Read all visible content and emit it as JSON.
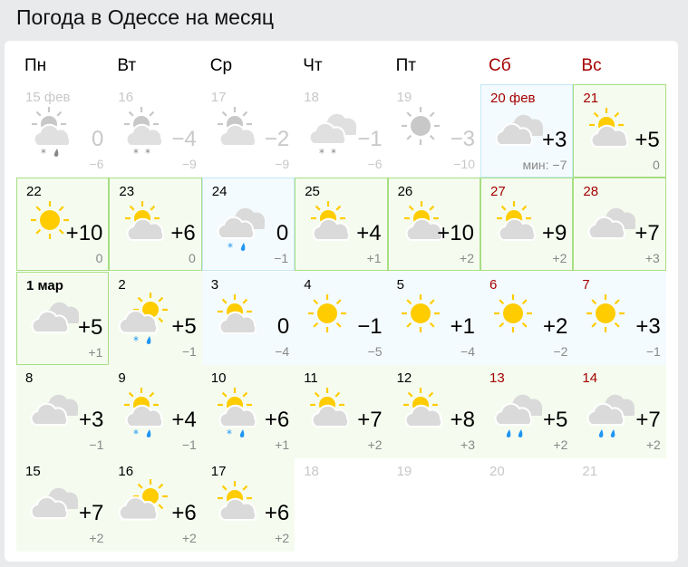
{
  "title": "Погода в Одессе на месяц",
  "weekdays": [
    {
      "label": "Пн",
      "weekend": false
    },
    {
      "label": "Вт",
      "weekend": false
    },
    {
      "label": "Ср",
      "weekend": false
    },
    {
      "label": "Чт",
      "weekend": false
    },
    {
      "label": "Пт",
      "weekend": false
    },
    {
      "label": "Сб",
      "weekend": true
    },
    {
      "label": "Вс",
      "weekend": true
    }
  ],
  "colors": {
    "sun": "#ffcc00",
    "cloud": "#dadada",
    "weekend": "#a50000",
    "precip": "#2196f3",
    "past": "#c8c8c8"
  },
  "days": [
    {
      "date": "15 фев",
      "state": "past",
      "icon": "sun-cloud",
      "precip": [
        "snow",
        "rain"
      ],
      "max": "0",
      "min": "−6"
    },
    {
      "date": "16",
      "state": "past",
      "icon": "sun-cloud",
      "precip": [
        "snow",
        "snow"
      ],
      "max": "−4",
      "min": "−9"
    },
    {
      "date": "17",
      "state": "past",
      "icon": "sun-cloud",
      "precip": [],
      "max": "−2",
      "min": "−9"
    },
    {
      "date": "18",
      "state": "past",
      "icon": "cloudy",
      "precip": [
        "snow",
        "snow"
      ],
      "max": "−1",
      "min": "−6"
    },
    {
      "date": "19",
      "state": "past",
      "icon": "sun",
      "precip": [],
      "max": "−3",
      "min": "−10"
    },
    {
      "date": "20 фев",
      "state": "blue",
      "border": true,
      "weekend": true,
      "icon": "cloudy",
      "precip": [],
      "max": "+3",
      "min": "мин: −7"
    },
    {
      "date": "21",
      "state": "green",
      "border": true,
      "weekend": true,
      "icon": "sun-cloud",
      "precip": [],
      "max": "+5",
      "min": "0"
    },
    {
      "date": "22",
      "state": "green",
      "border": true,
      "icon": "sun",
      "precip": [],
      "max": "+10",
      "min": "0"
    },
    {
      "date": "23",
      "state": "green",
      "border": true,
      "icon": "sun-cloud",
      "precip": [],
      "max": "+6",
      "min": "0"
    },
    {
      "date": "24",
      "state": "blue",
      "border": true,
      "icon": "cloudy",
      "precip": [
        "snow",
        "rain"
      ],
      "max": "0",
      "min": "−1"
    },
    {
      "date": "25",
      "state": "green",
      "border": true,
      "icon": "sun-cloud",
      "precip": [],
      "max": "+4",
      "min": "+1"
    },
    {
      "date": "26",
      "state": "green",
      "border": true,
      "icon": "sun-cloud",
      "precip": [],
      "max": "+10",
      "min": "+2"
    },
    {
      "date": "27",
      "state": "green",
      "border": true,
      "weekend": true,
      "icon": "sun-cloud",
      "precip": [],
      "max": "+9",
      "min": "+2"
    },
    {
      "date": "28",
      "state": "green",
      "border": true,
      "weekend": true,
      "icon": "cloudy",
      "precip": [],
      "max": "+7",
      "min": "+3"
    },
    {
      "date": "1 мар",
      "state": "green",
      "border": true,
      "bold": true,
      "icon": "cloudy",
      "precip": [],
      "max": "+5",
      "min": "+1"
    },
    {
      "date": "2",
      "state": "green",
      "icon": "cloud-sun-side",
      "precip": [
        "snow",
        "rain"
      ],
      "max": "+5",
      "min": "−1"
    },
    {
      "date": "3",
      "state": "blue",
      "icon": "sun-cloud",
      "precip": [],
      "max": "0",
      "min": "−4"
    },
    {
      "date": "4",
      "state": "blue",
      "icon": "sun",
      "precip": [],
      "max": "−1",
      "min": "−5"
    },
    {
      "date": "5",
      "state": "blue",
      "icon": "sun",
      "precip": [],
      "max": "+1",
      "min": "−4"
    },
    {
      "date": "6",
      "state": "blue",
      "weekend": true,
      "icon": "sun",
      "precip": [],
      "max": "+2",
      "min": "−2"
    },
    {
      "date": "7",
      "state": "blue",
      "weekend": true,
      "icon": "sun",
      "precip": [],
      "max": "+3",
      "min": "−1"
    },
    {
      "date": "8",
      "state": "green",
      "icon": "cloudy",
      "precip": [],
      "max": "+3",
      "min": "−1"
    },
    {
      "date": "9",
      "state": "green",
      "icon": "sun-cloud",
      "precip": [
        "snow",
        "rain"
      ],
      "max": "+4",
      "min": "−1"
    },
    {
      "date": "10",
      "state": "green",
      "icon": "sun-cloud",
      "precip": [
        "snow",
        "rain"
      ],
      "max": "+6",
      "min": "+1"
    },
    {
      "date": "11",
      "state": "green",
      "icon": "sun-cloud",
      "precip": [],
      "max": "+7",
      "min": "+2"
    },
    {
      "date": "12",
      "state": "green",
      "icon": "sun-cloud",
      "precip": [],
      "max": "+8",
      "min": "+3"
    },
    {
      "date": "13",
      "state": "green",
      "weekend": true,
      "icon": "cloudy",
      "precip": [
        "rain",
        "rain"
      ],
      "max": "+5",
      "min": "+2"
    },
    {
      "date": "14",
      "state": "green",
      "weekend": true,
      "icon": "cloudy",
      "precip": [
        "rain",
        "rain"
      ],
      "max": "+7",
      "min": "+2"
    },
    {
      "date": "15",
      "state": "green",
      "icon": "cloudy",
      "precip": [],
      "max": "+7",
      "min": "+2"
    },
    {
      "date": "16",
      "state": "green",
      "icon": "cloud-sun-side",
      "precip": [],
      "max": "+6",
      "min": "+2"
    },
    {
      "date": "17",
      "state": "green",
      "icon": "sun-cloud",
      "precip": [],
      "max": "+6",
      "min": "+2"
    },
    {
      "date": "18",
      "state": "future"
    },
    {
      "date": "19",
      "state": "future"
    },
    {
      "date": "20",
      "state": "future"
    },
    {
      "date": "21",
      "state": "future"
    }
  ]
}
